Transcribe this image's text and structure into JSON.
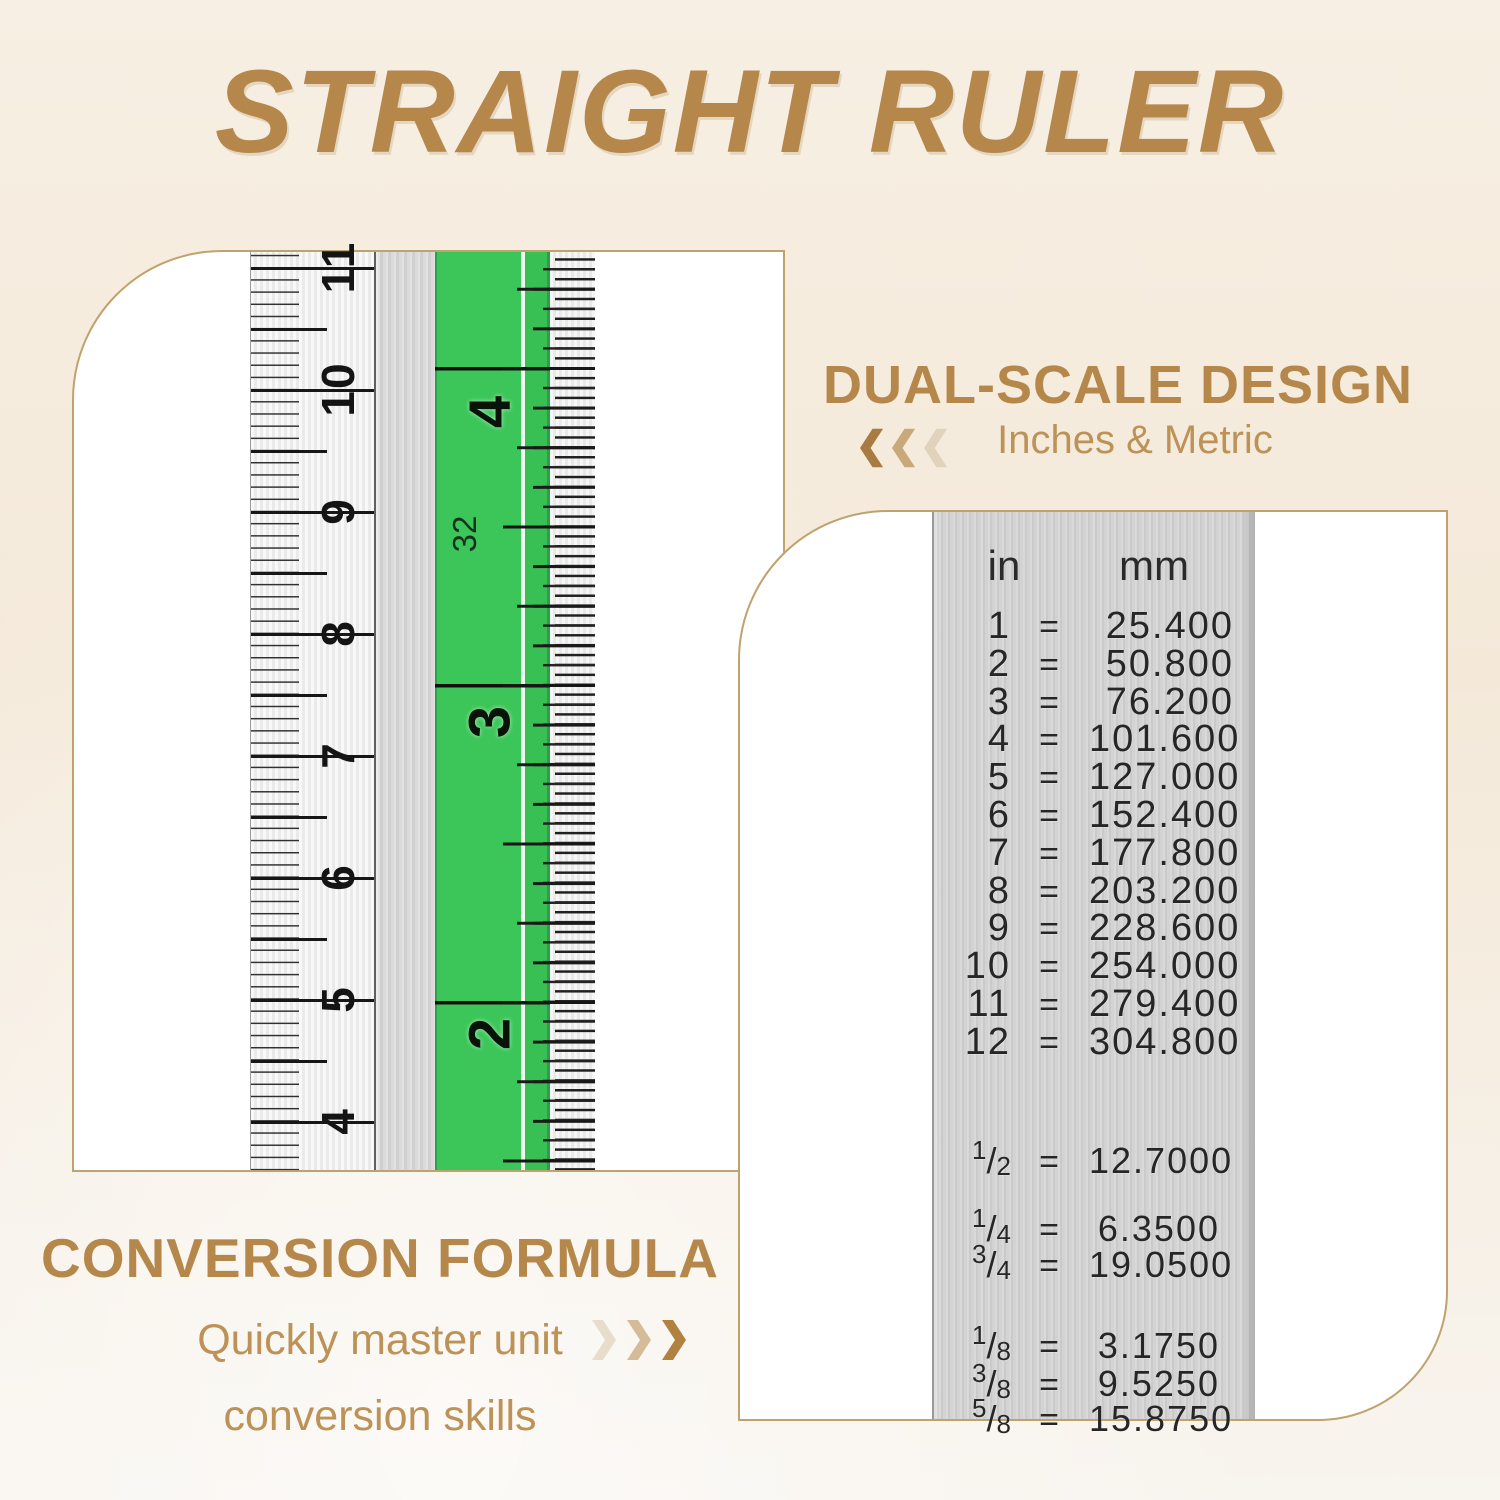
{
  "title": "STRAIGHT RULER",
  "dual_scale": {
    "heading": "DUAL-SCALE DESIGN",
    "subheading": "Inches & Metric"
  },
  "conversion_formula": {
    "heading": "CONVERSION FORMULA",
    "line1": "Quickly master unit",
    "line2": "conversion skills"
  },
  "ruler_closeup": {
    "metric_labels": [
      "11",
      "10",
      "9",
      "8",
      "7",
      "6",
      "5",
      "4"
    ],
    "inch_labels": [
      "4",
      "3",
      "2"
    ],
    "gradation_label": "32"
  },
  "conversion_table": {
    "headers": {
      "in": "in",
      "mm": "mm"
    },
    "equals": "=",
    "whole_inches": [
      [
        "1",
        "25.400"
      ],
      [
        "2",
        "50.800"
      ],
      [
        "3",
        "76.200"
      ],
      [
        "4",
        "101.600"
      ],
      [
        "5",
        "127.000"
      ],
      [
        "6",
        "152.400"
      ],
      [
        "7",
        "177.800"
      ],
      [
        "8",
        "203.200"
      ],
      [
        "9",
        "228.600"
      ],
      [
        "10",
        "254.000"
      ],
      [
        "11",
        "279.400"
      ],
      [
        "12",
        "304.800"
      ]
    ],
    "fraction_inches": [
      [
        "1",
        "2",
        "12.7000"
      ],
      [
        "1",
        "4",
        "6.3500"
      ],
      [
        "3",
        "4",
        "19.0500"
      ],
      [
        "1",
        "8",
        "3.1750"
      ],
      [
        "3",
        "8",
        "9.5250"
      ],
      [
        "5",
        "8",
        "15.8750"
      ]
    ]
  },
  "colors": {
    "background_top": "#f7efe3",
    "background_bottom": "#f8f4ee",
    "gold_heading": "#b5874a",
    "gold_sub": "#bd9257",
    "panel_border": "#bfa26d",
    "green_band": "#3cc65a",
    "chevrons_left": [
      "#a87b42",
      "#c9a97a",
      "#e0d2bb"
    ],
    "chevrons_right": [
      "#e8ddca",
      "#d5bb97",
      "#b1813f"
    ]
  }
}
